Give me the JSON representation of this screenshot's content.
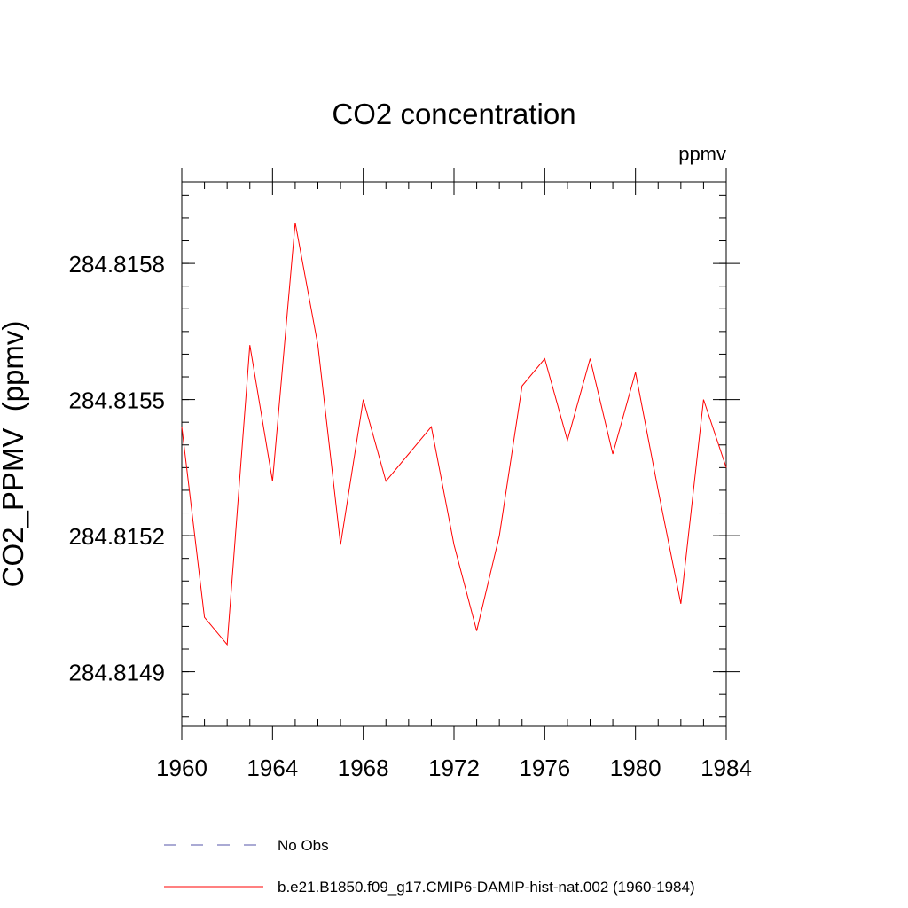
{
  "chart_data": {
    "type": "line",
    "title": "CO2 concentration",
    "units": "ppmv",
    "xlabel": "",
    "ylabel": "CO2_PPMV  (ppmv)",
    "xlim": [
      1960,
      1984
    ],
    "ylim": [
      284.81478,
      284.81598
    ],
    "x_ticks": [
      1960,
      1964,
      1968,
      1972,
      1976,
      1980,
      1984
    ],
    "x_tick_labels": [
      "1960",
      "1964",
      "1968",
      "1972",
      "1976",
      "1980",
      "1984"
    ],
    "y_ticks": [
      284.8149,
      284.8152,
      284.8155,
      284.8158
    ],
    "y_tick_labels": [
      "284.8149",
      "284.8152",
      "284.8155",
      "284.8158"
    ],
    "grid": false,
    "legend_placement": "bottom",
    "series": [
      {
        "name": "No Obs",
        "color": "#5555aa",
        "style": "dashed",
        "values": []
      },
      {
        "name": "b.e21.B1850.f09_g17.CMIP6-DAMIP-hist-nat.002 (1960-1984)",
        "color": "#ff0000",
        "style": "solid",
        "x": [
          1960,
          1961,
          1962,
          1963,
          1964,
          1965,
          1966,
          1967,
          1968,
          1969,
          1970,
          1971,
          1972,
          1973,
          1974,
          1975,
          1976,
          1977,
          1978,
          1979,
          1980,
          1981,
          1982,
          1983,
          1984
        ],
        "values": [
          284.81544,
          284.81502,
          284.81496,
          284.81562,
          284.81532,
          284.81589,
          284.81562,
          284.81518,
          284.8155,
          284.81532,
          284.81538,
          284.81544,
          284.81518,
          284.81499,
          284.8152,
          284.81553,
          284.81559,
          284.81541,
          284.81559,
          284.81538,
          284.81556,
          284.8153,
          284.81505,
          284.8155,
          284.81535
        ]
      }
    ]
  }
}
